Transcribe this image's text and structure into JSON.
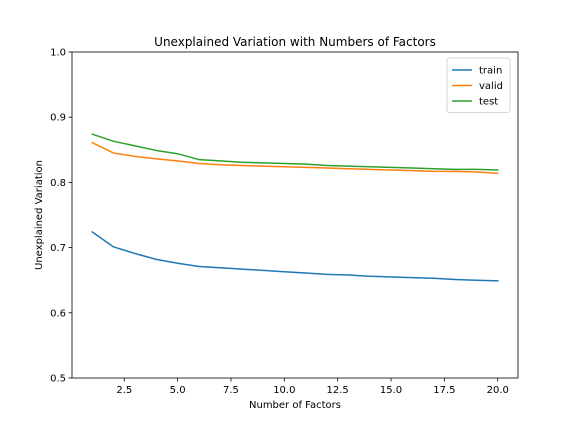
{
  "chart_data": {
    "type": "line",
    "title": "Unexplained Variation with Numbers of Factors",
    "xlabel": "Number of Factors",
    "ylabel": "Unexplained Variation",
    "xlim": [
      0.05,
      20.95
    ],
    "ylim": [
      0.5,
      1.0
    ],
    "xticks": [
      2.5,
      5.0,
      7.5,
      10.0,
      12.5,
      15.0,
      17.5,
      20.0
    ],
    "xtick_labels": [
      "2.5",
      "5.0",
      "7.5",
      "10.0",
      "12.5",
      "15.0",
      "17.5",
      "20.0"
    ],
    "yticks": [
      0.5,
      0.6,
      0.7,
      0.8,
      0.9,
      1.0
    ],
    "ytick_labels": [
      "0.5",
      "0.6",
      "0.7",
      "0.8",
      "0.9",
      "1.0"
    ],
    "grid": false,
    "legend_position": "top-right",
    "x": [
      1,
      2,
      3,
      4,
      5,
      6,
      7,
      8,
      9,
      10,
      11,
      12,
      13,
      14,
      15,
      16,
      17,
      18,
      19,
      20
    ],
    "series": [
      {
        "name": "train",
        "color": "#1f77b4",
        "values": [
          0.724,
          0.701,
          0.691,
          0.682,
          0.676,
          0.671,
          0.669,
          0.667,
          0.665,
          0.663,
          0.661,
          0.659,
          0.658,
          0.656,
          0.655,
          0.654,
          0.653,
          0.651,
          0.65,
          0.649
        ]
      },
      {
        "name": "valid",
        "color": "#ff7f0e",
        "values": [
          0.861,
          0.845,
          0.84,
          0.836,
          0.833,
          0.829,
          0.827,
          0.826,
          0.825,
          0.824,
          0.823,
          0.822,
          0.821,
          0.82,
          0.819,
          0.818,
          0.817,
          0.817,
          0.816,
          0.814
        ]
      },
      {
        "name": "test",
        "color": "#2ca02c",
        "values": [
          0.874,
          0.863,
          0.856,
          0.849,
          0.844,
          0.835,
          0.833,
          0.831,
          0.83,
          0.829,
          0.828,
          0.826,
          0.825,
          0.824,
          0.823,
          0.822,
          0.821,
          0.82,
          0.82,
          0.819
        ]
      }
    ]
  }
}
